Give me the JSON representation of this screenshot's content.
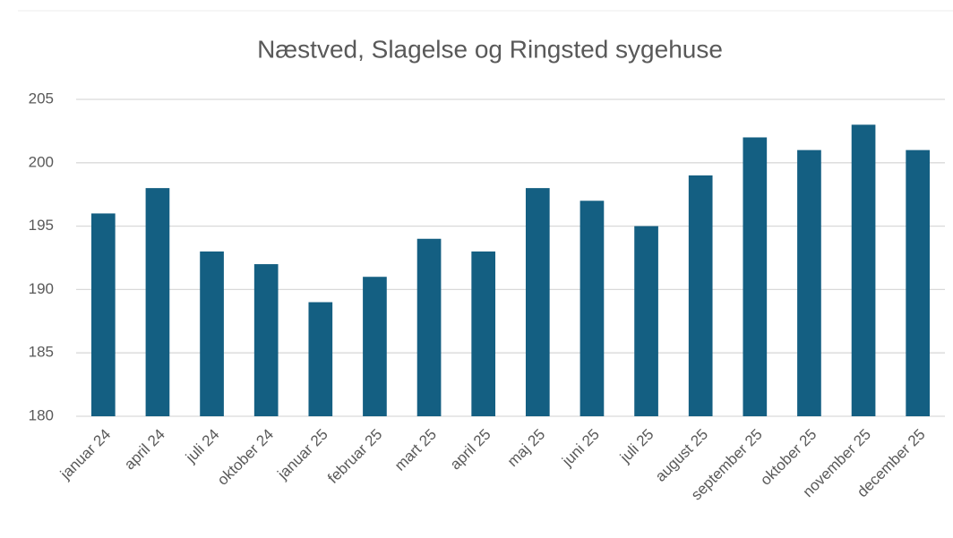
{
  "chart_data": {
    "type": "bar",
    "title": "Næstved, Slagelse og Ringsted sygehuse",
    "categories": [
      "januar 24",
      "april 24",
      "juli 24",
      "oktober 24",
      "januar 25",
      "februar 25",
      "mart 25",
      "april 25",
      "maj 25",
      "juni 25",
      "juli 25",
      "august 25",
      "september 25",
      "oktober 25",
      "november 25",
      "december 25"
    ],
    "values": [
      196,
      198,
      193,
      192,
      189,
      191,
      194,
      193,
      198,
      197,
      195,
      199,
      202,
      201,
      203,
      201
    ],
    "color": "#145f82",
    "ylim": [
      180,
      205
    ],
    "yticks": [
      180,
      185,
      190,
      195,
      200,
      205
    ],
    "grid": true
  }
}
